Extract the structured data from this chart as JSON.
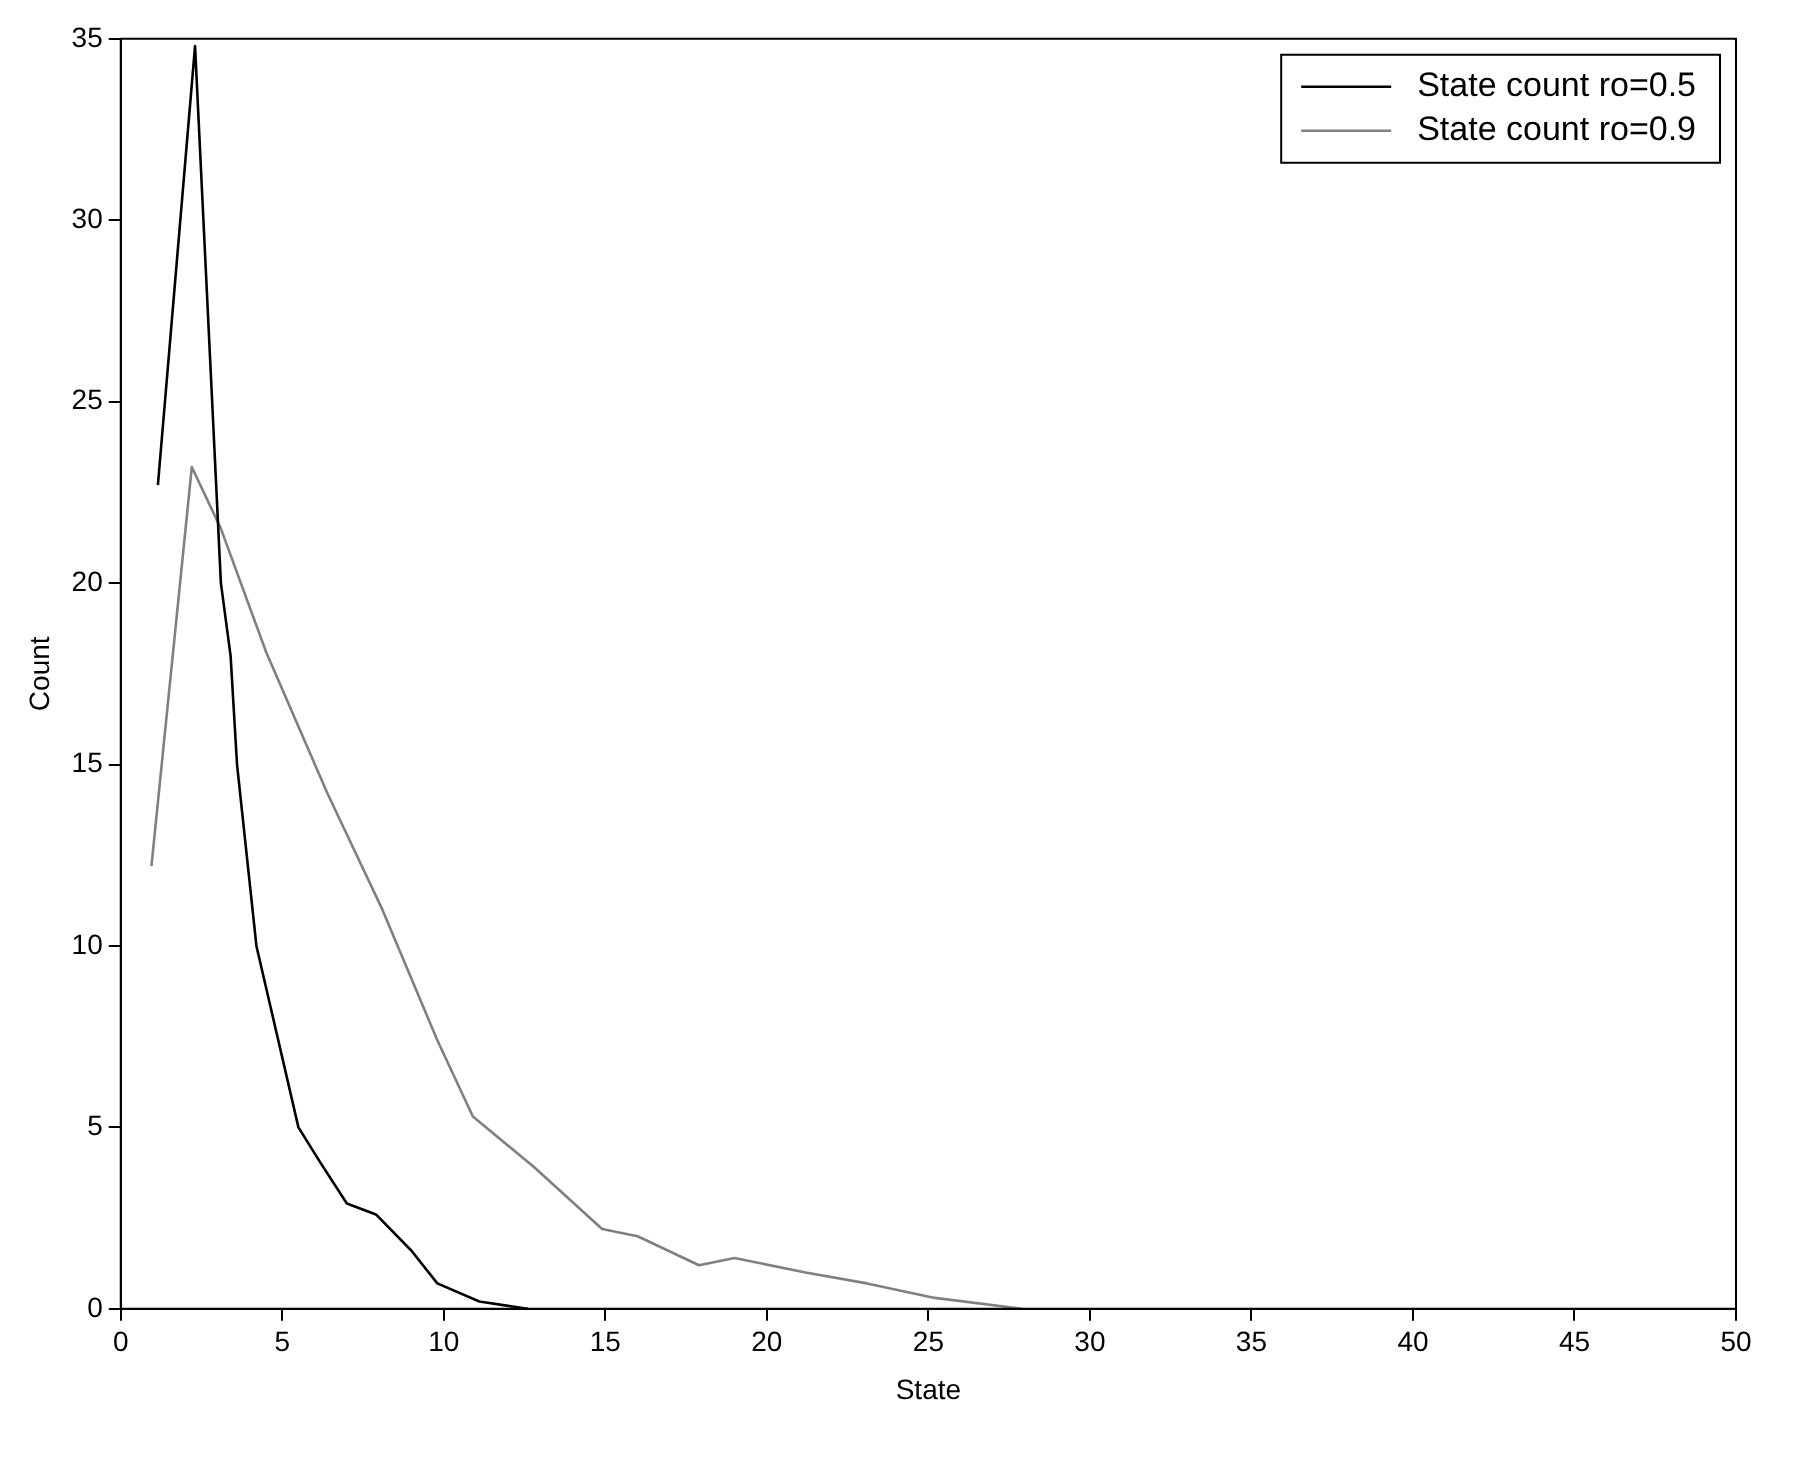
{
  "chart_data": {
    "type": "line",
    "xlabel": "State",
    "ylabel": "Count",
    "xlim": [
      0,
      50
    ],
    "xticks": [
      0,
      5,
      10,
      15,
      20,
      25,
      30,
      35,
      40,
      45,
      50
    ],
    "ylim": [
      0,
      35
    ],
    "yticks": [
      0,
      5,
      10,
      15,
      20,
      25,
      30,
      35
    ],
    "grid": false,
    "legend": "top right",
    "marker": "none",
    "line_style": "solid",
    "series": [
      {
        "name": "State count ro=0.5",
        "color": "#000000",
        "x": [
          1.15,
          2.3,
          3.1,
          3.4,
          3.6,
          4.2,
          5.5,
          6.2,
          7.0,
          7.9,
          9.0,
          9.8,
          11.1,
          12.6
        ],
        "values": [
          22.7,
          34.8,
          20.0,
          18.0,
          15.0,
          10.0,
          5.0,
          4.0,
          2.9,
          2.6,
          1.6,
          0.7,
          0.2,
          0
        ]
      },
      {
        "name": "State count ro=0.9",
        "color": "#808080",
        "x": [
          0.95,
          2.2,
          3.1,
          4.5,
          6.4,
          8.1,
          9.8,
          10.9,
          12.8,
          14.9,
          16.0,
          17.9,
          19.0,
          21.2,
          23.1,
          25.2,
          27.9
        ],
        "values": [
          12.2,
          23.2,
          21.5,
          18.1,
          14.2,
          11.0,
          7.4,
          5.3,
          3.9,
          2.2,
          2.0,
          1.2,
          1.4,
          1.0,
          0.7,
          0.3,
          0
        ]
      }
    ]
  }
}
